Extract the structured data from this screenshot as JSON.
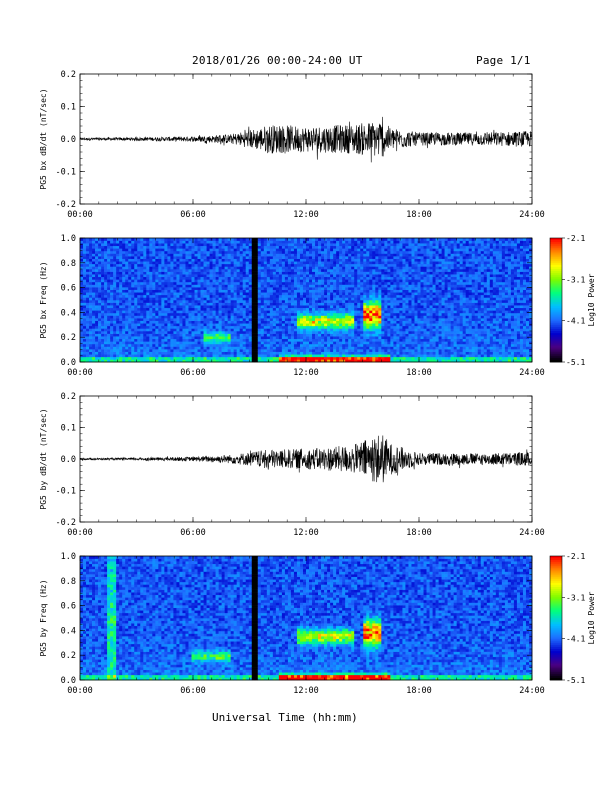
{
  "header": {
    "title": "2018/01/26  00:00-24:00 UT",
    "page": "Page 1/1"
  },
  "xlabel": "Universal Time (hh:mm)",
  "colors": {
    "background": "#ffffff",
    "trace": "#000000",
    "colormap": [
      "#000000",
      "#4b0082",
      "#0000cd",
      "#1e6cff",
      "#00bfff",
      "#00ff7f",
      "#7cfc00",
      "#ffff00",
      "#ff8c00",
      "#ff0000"
    ]
  },
  "chart_data": [
    {
      "type": "line",
      "ylabel": "PG5 bx dB/dt (nT/sec)",
      "xlim": [
        0,
        24
      ],
      "ylim": [
        -0.2,
        0.2
      ],
      "xticks": [
        "00:00",
        "06:00",
        "12:00",
        "18:00",
        "24:00"
      ],
      "yticks": [
        "-0.2",
        "-0.1",
        "0.0",
        "0.1",
        "0.2"
      ],
      "envelope": [
        {
          "x": 0,
          "y": 0.004
        },
        {
          "x": 3,
          "y": 0.005
        },
        {
          "x": 6,
          "y": 0.008
        },
        {
          "x": 8,
          "y": 0.015
        },
        {
          "x": 9.5,
          "y": 0.035
        },
        {
          "x": 10,
          "y": 0.045
        },
        {
          "x": 12,
          "y": 0.04
        },
        {
          "x": 14.5,
          "y": 0.045
        },
        {
          "x": 16,
          "y": 0.06
        },
        {
          "x": 16.5,
          "y": 0.035
        },
        {
          "x": 18,
          "y": 0.02
        },
        {
          "x": 21,
          "y": 0.02
        },
        {
          "x": 24,
          "y": 0.025
        }
      ]
    },
    {
      "type": "heatmap",
      "ylabel": "PG5 bx Freq (Hz)",
      "xlim": [
        0,
        24
      ],
      "ylim": [
        0,
        1.0
      ],
      "xticks": [
        "00:00",
        "06:00",
        "12:00",
        "18:00",
        "24:00"
      ],
      "yticks": [
        "0.0",
        "0.2",
        "0.4",
        "0.6",
        "0.8",
        "1.0"
      ],
      "colorbar": {
        "label": "Log10 Power",
        "range": [
          -5.1,
          -2.1
        ],
        "ticks": [
          "-2.1",
          "-3.1",
          "-4.1",
          "-5.1"
        ]
      },
      "data_gap_hour": 9.3,
      "features": [
        {
          "t0": 11.5,
          "t1": 14.5,
          "f": 0.33,
          "bw": 0.08,
          "level": 0.55
        },
        {
          "t0": 15.0,
          "t1": 16.0,
          "f": 0.38,
          "bw": 0.14,
          "level": 0.8
        },
        {
          "t0": 6.5,
          "t1": 8.0,
          "f": 0.2,
          "bw": 0.06,
          "level": 0.35
        },
        {
          "t0": 10.5,
          "t1": 16.5,
          "f": 0.02,
          "bw": 0.04,
          "level": 0.75
        }
      ]
    },
    {
      "type": "line",
      "ylabel": "PG5 by dB/dt (nT/sec)",
      "xlim": [
        0,
        24
      ],
      "ylim": [
        -0.2,
        0.2
      ],
      "xticks": [
        "00:00",
        "06:00",
        "12:00",
        "18:00",
        "24:00"
      ],
      "yticks": [
        "-0.2",
        "-0.1",
        "0.0",
        "0.1",
        "0.2"
      ],
      "envelope": [
        {
          "x": 0,
          "y": 0.003
        },
        {
          "x": 3,
          "y": 0.004
        },
        {
          "x": 6,
          "y": 0.007
        },
        {
          "x": 8,
          "y": 0.014
        },
        {
          "x": 10,
          "y": 0.03
        },
        {
          "x": 12,
          "y": 0.032
        },
        {
          "x": 14.5,
          "y": 0.045
        },
        {
          "x": 16,
          "y": 0.085
        },
        {
          "x": 16.5,
          "y": 0.05
        },
        {
          "x": 18,
          "y": 0.02
        },
        {
          "x": 21,
          "y": 0.018
        },
        {
          "x": 24,
          "y": 0.022
        }
      ]
    },
    {
      "type": "heatmap",
      "ylabel": "PG5 by Freq (Hz)",
      "xlim": [
        0,
        24
      ],
      "ylim": [
        0,
        1.0
      ],
      "xticks": [
        "00:00",
        "06:00",
        "12:00",
        "18:00",
        "24:00"
      ],
      "yticks": [
        "0.0",
        "0.2",
        "0.4",
        "0.6",
        "0.8",
        "1.0"
      ],
      "colorbar": {
        "label": "Log10 Power",
        "range": [
          -5.1,
          -2.1
        ],
        "ticks": [
          "-2.1",
          "-3.1",
          "-4.1",
          "-5.1"
        ]
      },
      "data_gap_hour": 9.3,
      "features": [
        {
          "t0": 11.5,
          "t1": 14.5,
          "f": 0.35,
          "bw": 0.08,
          "level": 0.55
        },
        {
          "t0": 15.0,
          "t1": 16.0,
          "f": 0.38,
          "bw": 0.14,
          "level": 0.8
        },
        {
          "t0": 6.0,
          "t1": 8.0,
          "f": 0.19,
          "bw": 0.06,
          "level": 0.35
        },
        {
          "t0": 1.5,
          "t1": 1.9,
          "f": 0.5,
          "bw": 1.0,
          "level": 0.3
        },
        {
          "t0": 10.5,
          "t1": 16.5,
          "f": 0.02,
          "bw": 0.04,
          "level": 0.8
        }
      ]
    }
  ]
}
